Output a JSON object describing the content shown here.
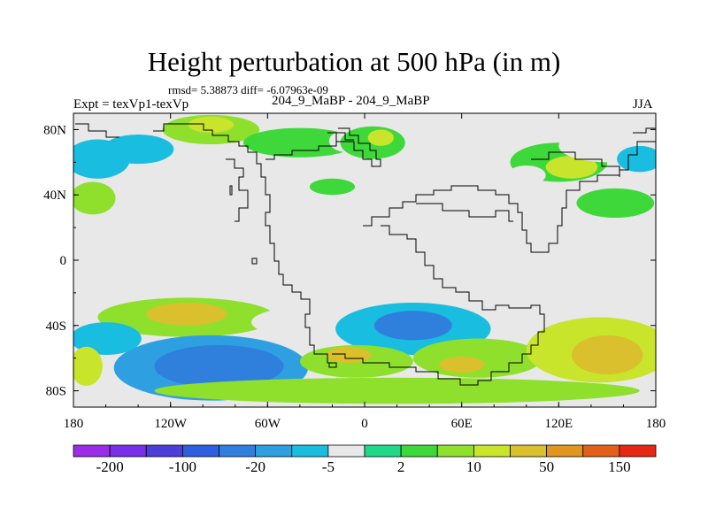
{
  "chart_data": {
    "type": "heatmap",
    "title": "Height perturbation at 500 hPa (in m)",
    "stats": "rmsd= 5.38873 diff= -6.07963e-09",
    "left_label": "Expt = texVp1-texVp",
    "center_label": "204_9_MaBP - 204_9_MaBP",
    "right_label": "JJA",
    "x_range": [
      -180,
      180
    ],
    "y_range": [
      -90,
      90
    ],
    "x_ticks": [
      {
        "value": -180,
        "label": "180"
      },
      {
        "value": -120,
        "label": "120W"
      },
      {
        "value": -60,
        "label": "60W"
      },
      {
        "value": 0,
        "label": "0"
      },
      {
        "value": 60,
        "label": "60E"
      },
      {
        "value": 120,
        "label": "120E"
      },
      {
        "value": 180,
        "label": "180"
      }
    ],
    "y_ticks": [
      {
        "value": 80,
        "label": "80N"
      },
      {
        "value": 40,
        "label": "40N"
      },
      {
        "value": 0,
        "label": "0"
      },
      {
        "value": -40,
        "label": "40S"
      },
      {
        "value": -80,
        "label": "80S"
      }
    ],
    "colorbar": {
      "colors": [
        "#9a2ee6",
        "#7a30e8",
        "#4b3ed9",
        "#2e5fe0",
        "#2f7fdc",
        "#2ea0e2",
        "#19bde0",
        "#e8e8e8",
        "#20d88a",
        "#3ed83a",
        "#8ee02c",
        "#c9e52b",
        "#d9c02c",
        "#e2961f",
        "#e3601a",
        "#e52813"
      ],
      "labels": [
        {
          "index": 1,
          "text": "-200"
        },
        {
          "index": 3,
          "text": "-100"
        },
        {
          "index": 5,
          "text": "-20"
        },
        {
          "index": 7,
          "text": "-5"
        },
        {
          "index": 9,
          "text": "2"
        },
        {
          "index": 11,
          "text": "10"
        },
        {
          "index": 13,
          "text": "50"
        },
        {
          "index": 15,
          "text": "150"
        }
      ]
    },
    "field_blobs": [
      {
        "lon": -165,
        "lat": 62,
        "rlon": 20,
        "rlat": 12,
        "value": -8
      },
      {
        "lon": -140,
        "lat": 68,
        "rlon": 22,
        "rlat": 9,
        "value": -6
      },
      {
        "lon": -168,
        "lat": 38,
        "rlon": 14,
        "rlat": 10,
        "value": 5
      },
      {
        "lon": -95,
        "lat": 80,
        "rlon": 30,
        "rlat": 9,
        "value": 6
      },
      {
        "lon": -95,
        "lat": 83,
        "rlon": 14,
        "rlat": 5,
        "value": 12
      },
      {
        "lon": -40,
        "lat": 72,
        "rlon": 35,
        "rlat": 9,
        "value": 3
      },
      {
        "lon": -30,
        "lat": 48,
        "rlon": 20,
        "rlat": 8,
        "value": -4
      },
      {
        "lon": -20,
        "lat": 45,
        "rlon": 14,
        "rlat": 5,
        "value": 4
      },
      {
        "lon": -10,
        "lat": 73,
        "rlon": 12,
        "rlat": 7,
        "value": -3
      },
      {
        "lon": 5,
        "lat": 72,
        "rlon": 20,
        "rlat": 10,
        "value": 4
      },
      {
        "lon": 10,
        "lat": 75,
        "rlon": 8,
        "rlat": 5,
        "value": 12
      },
      {
        "lon": 30,
        "lat": 38,
        "rlon": 40,
        "rlat": 12,
        "value": -4
      },
      {
        "lon": 50,
        "lat": 10,
        "rlon": 12,
        "rlat": 12,
        "value": -4
      },
      {
        "lon": 60,
        "lat": 85,
        "rlon": 35,
        "rlat": 8,
        "value": -4
      },
      {
        "lon": 120,
        "lat": 60,
        "rlon": 30,
        "rlat": 12,
        "value": 4
      },
      {
        "lon": 128,
        "lat": 57,
        "rlon": 16,
        "rlat": 7,
        "value": 12
      },
      {
        "lon": 100,
        "lat": 52,
        "rlon": 12,
        "rlat": 6,
        "value": -3
      },
      {
        "lon": 150,
        "lat": 70,
        "rlon": 30,
        "rlat": 10,
        "value": -5
      },
      {
        "lon": 170,
        "lat": 62,
        "rlon": 14,
        "rlat": 8,
        "value": -7
      },
      {
        "lon": 155,
        "lat": 35,
        "rlon": 24,
        "rlat": 9,
        "value": 4
      },
      {
        "lon": 140,
        "lat": 20,
        "rlon": 14,
        "rlat": 6,
        "value": -3
      },
      {
        "lon": -110,
        "lat": -35,
        "rlon": 55,
        "rlat": 12,
        "value": 8
      },
      {
        "lon": -110,
        "lat": -33,
        "rlon": 25,
        "rlat": 7,
        "value": 25
      },
      {
        "lon": -95,
        "lat": -66,
        "rlon": 60,
        "rlat": 20,
        "value": -15
      },
      {
        "lon": -90,
        "lat": -65,
        "rlon": 40,
        "rlat": 13,
        "value": -40
      },
      {
        "lon": -160,
        "lat": -48,
        "rlon": 22,
        "rlat": 10,
        "value": -6
      },
      {
        "lon": -172,
        "lat": -65,
        "rlon": 10,
        "rlat": 12,
        "value": 10
      },
      {
        "lon": -30,
        "lat": -38,
        "rlon": 40,
        "rlat": 10,
        "value": -4
      },
      {
        "lon": 30,
        "lat": -42,
        "rlon": 48,
        "rlat": 16,
        "value": -10
      },
      {
        "lon": 30,
        "lat": -40,
        "rlon": 24,
        "rlat": 9,
        "value": -40
      },
      {
        "lon": -5,
        "lat": -62,
        "rlon": 35,
        "rlat": 10,
        "value": 8
      },
      {
        "lon": -10,
        "lat": -58,
        "rlon": 14,
        "rlat": 5,
        "value": 20
      },
      {
        "lon": 70,
        "lat": -60,
        "rlon": 40,
        "rlat": 12,
        "value": 8
      },
      {
        "lon": 60,
        "lat": -64,
        "rlon": 14,
        "rlat": 5,
        "value": 25
      },
      {
        "lon": 145,
        "lat": -55,
        "rlon": 45,
        "rlat": 20,
        "value": 15
      },
      {
        "lon": 150,
        "lat": -58,
        "rlon": 22,
        "rlat": 12,
        "value": 45
      },
      {
        "lon": 20,
        "lat": -80,
        "rlon": 150,
        "rlat": 8,
        "value": 5
      }
    ]
  }
}
